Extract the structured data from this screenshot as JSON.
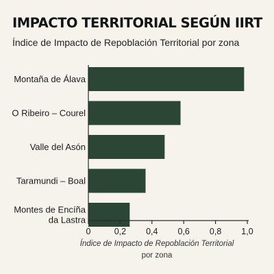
{
  "colors": {
    "background": "#f6f3ec",
    "bar": "#2b4634",
    "axis": "#2a2a2a",
    "text": "#1c1c1c"
  },
  "chart_data": {
    "type": "bar",
    "orientation": "horizontal",
    "title": "IMPACTO TERRITORIAL SEGÚN IIRT",
    "subtitle": "Índice de Impacto de Repoblación Territorial por zona",
    "categories": [
      [
        "Montaña de Álava"
      ],
      [
        "O Ribeiro – Courel"
      ],
      [
        "Valle del Asón"
      ],
      [
        "Taramundi – Boal"
      ],
      [
        "Montes de Encíña",
        "da Lastra"
      ]
    ],
    "values": [
      0.98,
      0.58,
      0.48,
      0.36,
      0.26
    ],
    "xlabel": {
      "line1": "Índice de Impacto de Repoblación Territorial",
      "line2": "por zona"
    },
    "ylabel": "",
    "xlim": [
      0,
      1.0
    ],
    "ticks": [
      0,
      0.2,
      0.4,
      0.6,
      0.8,
      1.0
    ],
    "tick_labels": [
      "0",
      "0,2",
      "0,4",
      "0,6",
      "0,8",
      "1,0"
    ],
    "grid": false,
    "legend": "none"
  }
}
